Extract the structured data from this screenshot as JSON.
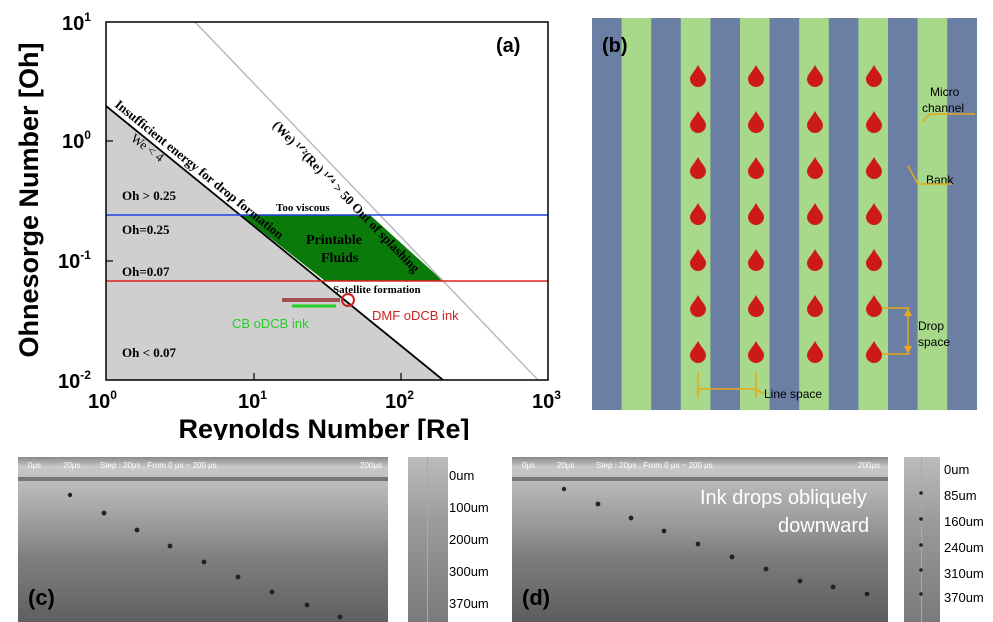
{
  "panel_a": {
    "label": "(a)",
    "y_axis_title": "Ohnesorge Number [Oh]",
    "x_axis_title": "Reynolds Number [Re]",
    "x_ticks": [
      {
        "base": "10",
        "exp": "0",
        "value": 1
      },
      {
        "base": "10",
        "exp": "1",
        "value": 10
      },
      {
        "base": "10",
        "exp": "2",
        "value": 100
      },
      {
        "base": "10",
        "exp": "3",
        "value": 1000
      }
    ],
    "y_ticks": [
      {
        "base": "10",
        "exp": "-2",
        "value": 0.01
      },
      {
        "base": "10",
        "exp": "-1",
        "value": 0.1
      },
      {
        "base": "10",
        "exp": "0",
        "value": 1
      },
      {
        "base": "10",
        "exp": "1",
        "value": 10
      }
    ],
    "labels": {
      "we4": "We < 4",
      "insufficient": "Insufficient energy for drop formation",
      "splashing": "(We) ¹ᐟ²(Re) ¹ᐟ⁴ > 50 Out of splashing",
      "oh_gt": "Oh > 0.25",
      "oh_025": "Oh=0.25",
      "oh_007": "Oh=0.07",
      "oh_lt": "Oh < 0.07",
      "too_viscous": "Too viscous",
      "printable_1": "Printable",
      "printable_2": "Fluids",
      "satellite": "Satellite formation",
      "cb_ink": "CB oDCB ink",
      "dmf_ink": "DMF oDCB ink"
    },
    "colors": {
      "blue_line": "#1f3fe0",
      "red_line": "#e02020",
      "green_region": "#0a7a0a",
      "gray_region": "#cfcfcf",
      "cb": "#22d022",
      "dmf": "#cc2222",
      "bar": "#a05050"
    }
  },
  "chart_data": {
    "type": "regime-map",
    "xscale": "log",
    "yscale": "log",
    "xlim": [
      1,
      1000
    ],
    "ylim": [
      0.01,
      10
    ],
    "xlabel": "Reynolds Number [Re]",
    "ylabel": "Ohnesorge Number [Oh]",
    "lines": [
      {
        "name": "Oh=0.25",
        "type": "horizontal",
        "y": 0.25
      },
      {
        "name": "Oh=0.07",
        "type": "horizontal",
        "y": 0.07
      },
      {
        "name": "We < 4",
        "points": [
          [
            1,
            2
          ],
          [
            200,
            0.01
          ]
        ]
      },
      {
        "name": "(We)1/2(Re)1/4 > 50",
        "points": [
          [
            1.9,
            10
          ],
          [
            900,
            0.01
          ]
        ]
      }
    ],
    "points": [
      {
        "name": "DMF oDCB ink",
        "x": 45,
        "y": 0.047
      },
      {
        "name": "CB oDCB ink",
        "x": 30,
        "y": 0.042
      }
    ]
  },
  "panel_b": {
    "label": "(b)",
    "micro_channel": "Micro\nchannel",
    "micro_1": "Micro",
    "micro_2": "channel",
    "bank": "Bank",
    "drop_1": "Drop",
    "drop_2": "space",
    "line_space": "Line space",
    "colors": {
      "stripe_blue": "#6a7fa3",
      "stripe_green": "#a8d98a",
      "drop": "#cc1a1a",
      "annot": "#e8a818"
    }
  },
  "panel_c": {
    "label": "(c)",
    "t0": "0μs",
    "t20": "20μs",
    "step": "Step : 20μs , From 0 μs ~ 200 μs",
    "t200": "200μs",
    "scale": [
      "0um",
      "100um",
      "200um",
      "300um",
      "370um"
    ]
  },
  "panel_d": {
    "label": "(d)",
    "t0": "0μs",
    "t20": "20μs",
    "step": "Step : 20μs , From 0 μs ~ 200 μs",
    "t200": "200μs",
    "note_1": "Ink drops obliquely",
    "note_2": "downward",
    "scale": [
      "0um",
      "85um",
      "160um",
      "240um",
      "310um",
      "370um"
    ]
  }
}
